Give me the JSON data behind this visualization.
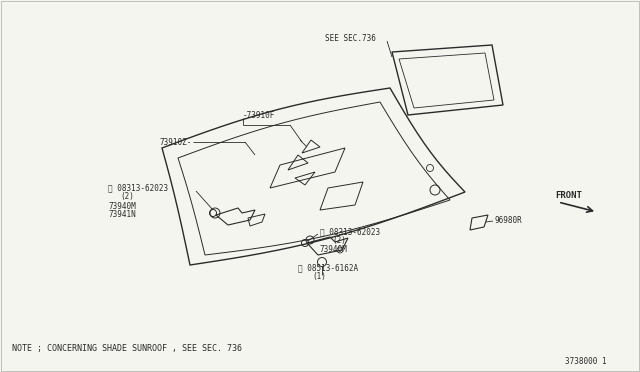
{
  "background_color": "#f5f5f0",
  "line_color": "#2a2a2a",
  "text_color": "#2a2a2a",
  "note_text": "NOTE ; CONCERNING SHADE SUNROOF , SEE SEC. 736",
  "part_number": "3738000 1",
  "labels": {
    "see_sec": "SEE SEC.736",
    "73910F": "-73910F",
    "73910Z": "73910Z-",
    "s08313_top": "Ⓢ 08313-62023",
    "qty2_top": "(2)",
    "73940M_top": "73940M",
    "73941N": "73941N",
    "s08313_bot": "Ⓢ 08313-62023",
    "qty2_bot": "(2)",
    "73940M_bot": "73940M",
    "s08513": "Ⓢ 08513-6162A",
    "qty1": "(1)",
    "96980R": "96980R",
    "front": "FRONT"
  }
}
